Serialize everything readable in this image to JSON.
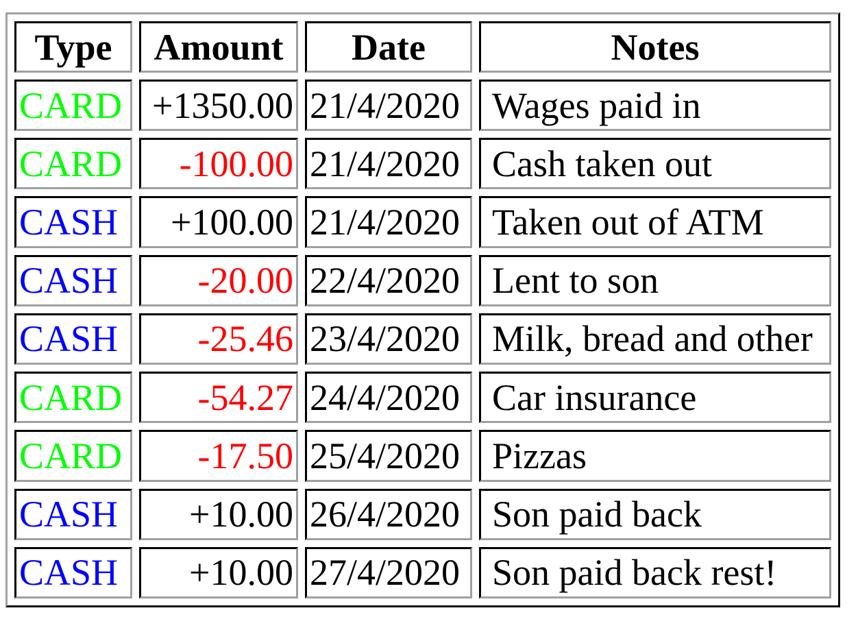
{
  "headers": [
    "Type",
    "Amount",
    "Date",
    "Notes"
  ],
  "colors": {
    "CARD": "#00ff00",
    "CASH": "#0000ff",
    "negative": "#ff0000",
    "positive": "#000000"
  },
  "rows": [
    {
      "type": "CARD",
      "amount": "+1350.00",
      "date": "21/4/2020",
      "notes": "Wages paid in"
    },
    {
      "type": "CARD",
      "amount": "-100.00",
      "date": "21/4/2020",
      "notes": "Cash taken out"
    },
    {
      "type": "CASH",
      "amount": "+100.00",
      "date": "21/4/2020",
      "notes": "Taken out of ATM"
    },
    {
      "type": "CASH",
      "amount": "-20.00",
      "date": "22/4/2020",
      "notes": "Lent to son"
    },
    {
      "type": "CASH",
      "amount": "-25.46",
      "date": "23/4/2020",
      "notes": "Milk, bread and other"
    },
    {
      "type": "CARD",
      "amount": "-54.27",
      "date": "24/4/2020",
      "notes": "Car insurance"
    },
    {
      "type": "CARD",
      "amount": "-17.50",
      "date": "25/4/2020",
      "notes": "Pizzas"
    },
    {
      "type": "CASH",
      "amount": "+10.00",
      "date": "26/4/2020",
      "notes": "Son paid back"
    },
    {
      "type": "CASH",
      "amount": "+10.00",
      "date": "27/4/2020",
      "notes": "Son paid back rest!"
    }
  ]
}
